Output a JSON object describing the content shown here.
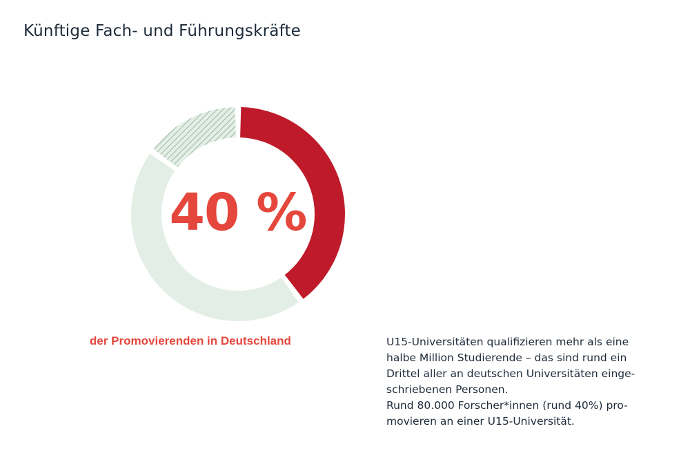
{
  "title": "Künftige Fach- und Führungskräfte",
  "chart_data": {
    "type": "pie",
    "center_label": "40 %",
    "caption": "der Promovierenden in Deutschland",
    "slices": [
      {
        "value": 40,
        "color": "#be1a29",
        "pattern": "solid"
      },
      {
        "value": 45,
        "color": "#e3efe6",
        "pattern": "solid"
      },
      {
        "value": 15,
        "color": "#e3efe6",
        "pattern": "hatched",
        "hatch_color": "#7d9a85"
      }
    ]
  },
  "paragraph": {
    "lines": [
      "U15-Universitäten qualifizieren mehr als eine",
      "halbe Million Studierende – das sind rund ein",
      "Drittel aller an deutschen Universitäten einge-",
      "schriebenen Personen.",
      "Rund 80.000 Forscher*innen (rund 40%) pro-",
      "movieren an einer U15-Universität."
    ]
  }
}
